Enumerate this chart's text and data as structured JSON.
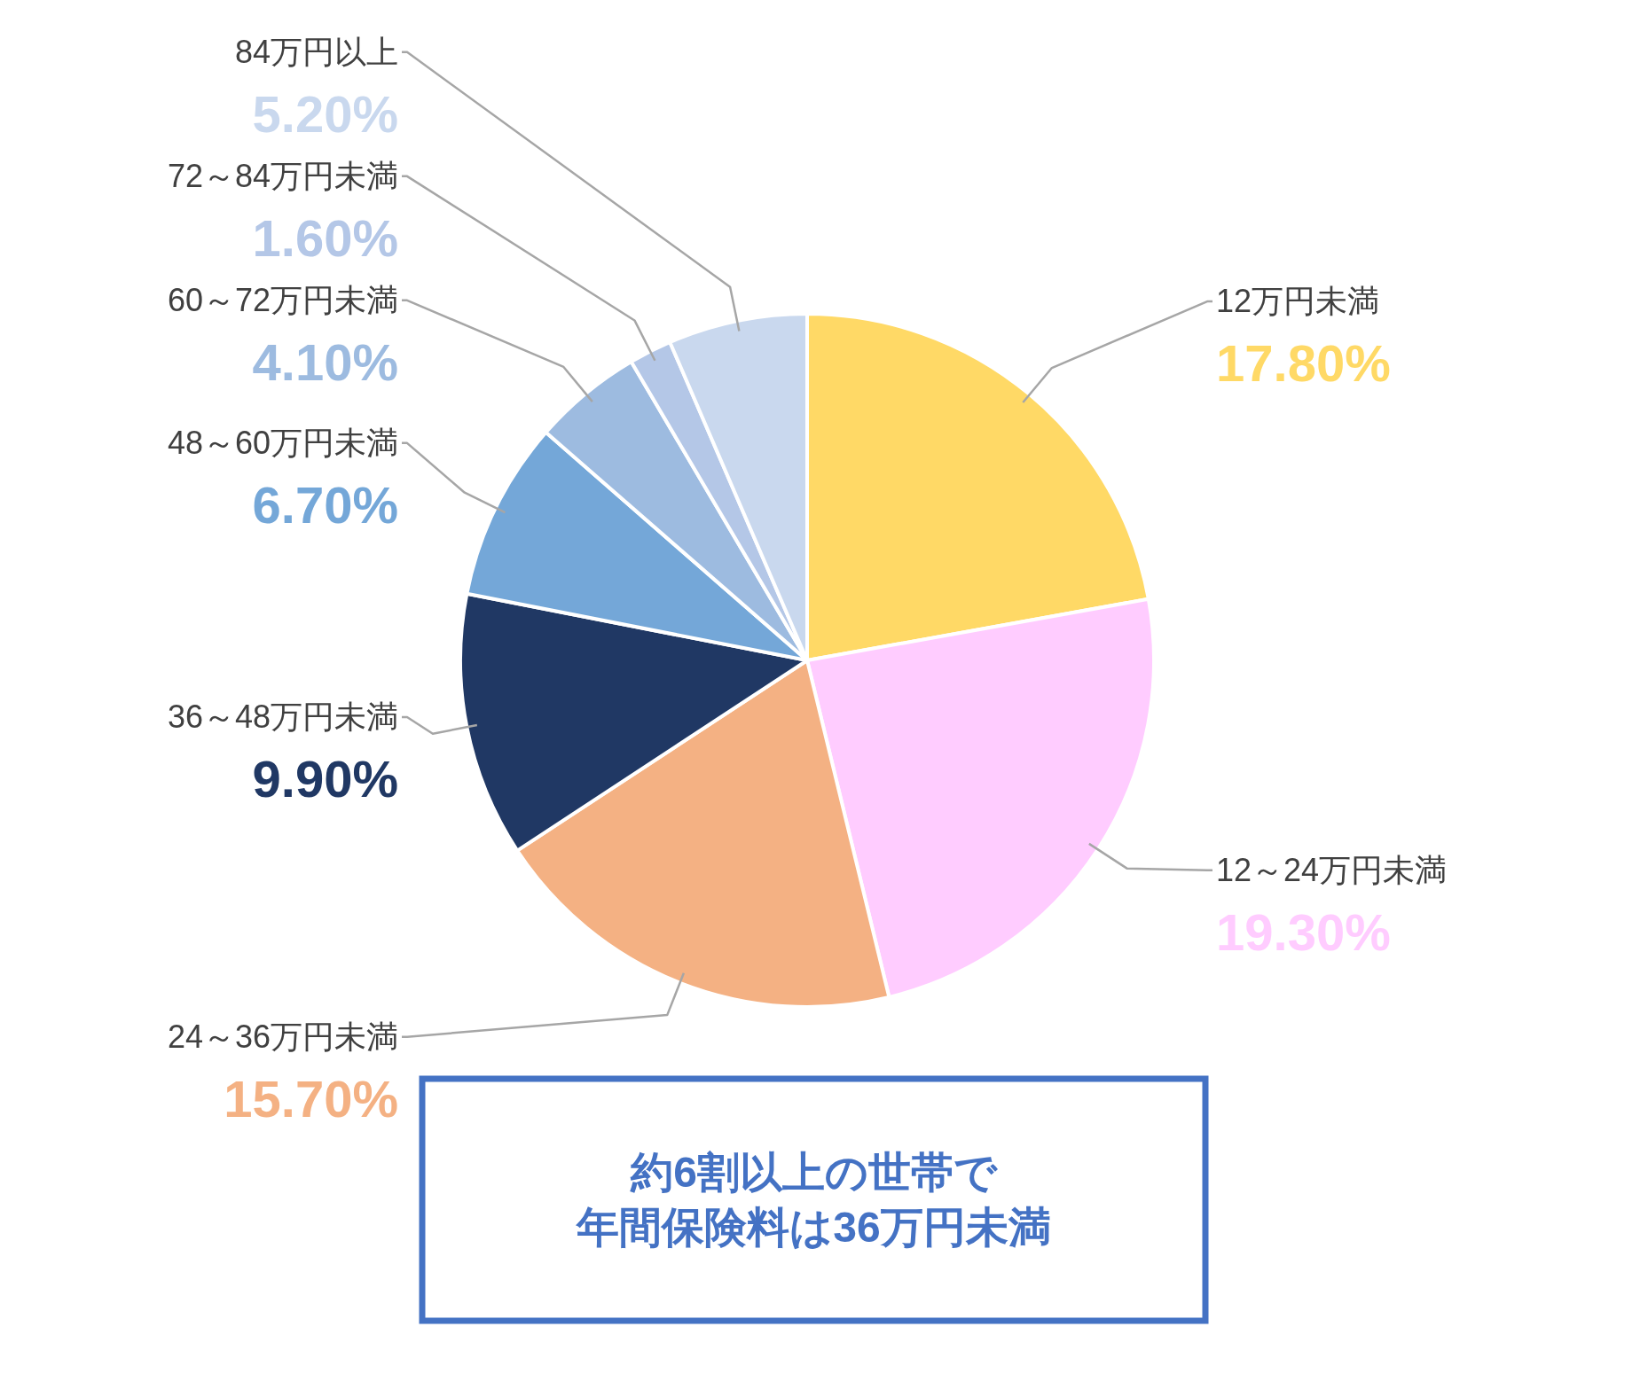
{
  "chart_data": {
    "type": "pie",
    "categories": [
      "12万円未満",
      "12～24万円未満",
      "24～36万円未満",
      "36～48万円未満",
      "48～60万円未満",
      "60～72万円未満",
      "72～84万円未満",
      "84万円以上"
    ],
    "values": [
      17.8,
      19.3,
      15.7,
      9.9,
      6.7,
      4.1,
      1.6,
      5.2
    ],
    "value_labels": [
      "17.80%",
      "19.30%",
      "15.70%",
      "9.90%",
      "6.70%",
      "4.10%",
      "1.60%",
      "5.20%"
    ],
    "colors": [
      "#ffd966",
      "#ffccff",
      "#f4b183",
      "#203864",
      "#74a7d8",
      "#9dbbe0",
      "#b4c7e7",
      "#c9d8ee"
    ],
    "annotations": [
      "約6割以上の世帯で",
      "年間保険料は36万円未満"
    ]
  }
}
